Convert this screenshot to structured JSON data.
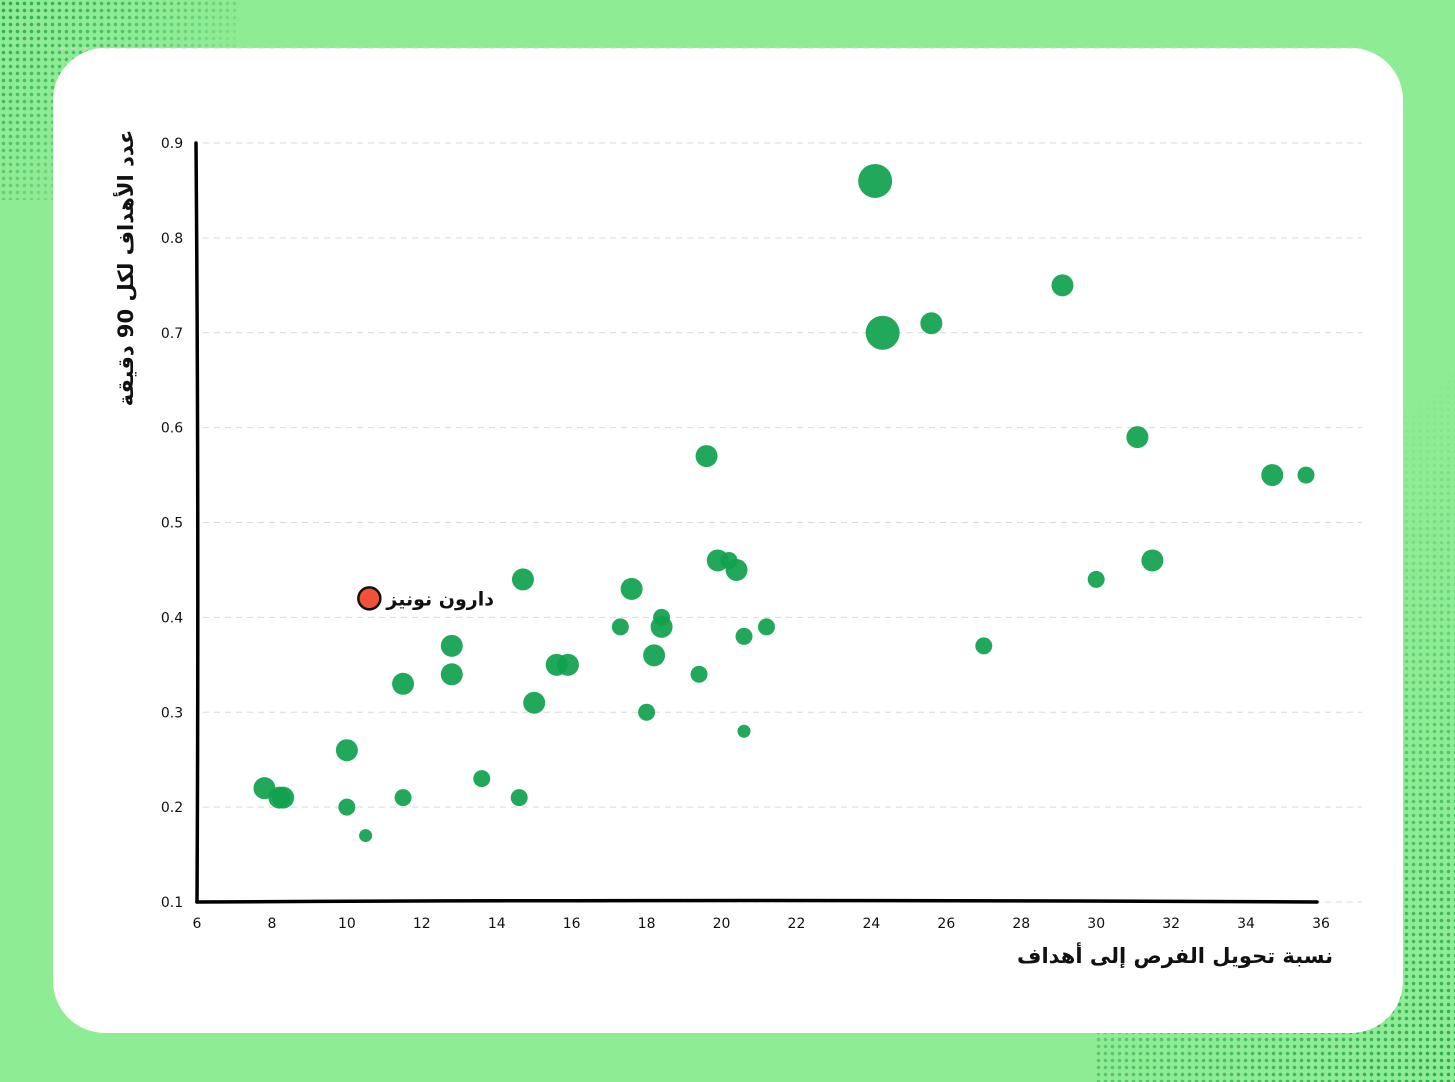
{
  "colors": {
    "background": "#8eec95",
    "card": "#ffffff",
    "point": "#11a14e",
    "highlight": "#f05138",
    "highlight_stroke": "#111111",
    "grid": "#d9d9d9",
    "axis": "#000000"
  },
  "chart_data": {
    "type": "scatter",
    "xlabel": "نسبة تحويل الفرص إلى أهداف",
    "ylabel": "عدد الأهداف لكل 90 دقيقة",
    "xlim": [
      6,
      36
    ],
    "ylim": [
      0.1,
      0.9
    ],
    "x_ticks": [
      "6",
      "8",
      "10",
      "12",
      "14",
      "16",
      "18",
      "20",
      "22",
      "24",
      "26",
      "28",
      "30",
      "32",
      "34",
      "36"
    ],
    "y_ticks": [
      "0.1",
      "0.2",
      "0.3",
      "0.4",
      "0.5",
      "0.6",
      "0.7",
      "0.8",
      "0.9"
    ],
    "grid": "horizontal dashed",
    "points": [
      {
        "x": 24.1,
        "y": 0.86,
        "size": "large"
      },
      {
        "x": 29.1,
        "y": 0.75,
        "size": "medium"
      },
      {
        "x": 24.3,
        "y": 0.7,
        "size": "large"
      },
      {
        "x": 25.6,
        "y": 0.71,
        "size": "medium"
      },
      {
        "x": 31.1,
        "y": 0.59,
        "size": "medium"
      },
      {
        "x": 19.6,
        "y": 0.57,
        "size": "medium"
      },
      {
        "x": 34.7,
        "y": 0.55,
        "size": "medium"
      },
      {
        "x": 35.6,
        "y": 0.55,
        "size": "small"
      },
      {
        "x": 31.5,
        "y": 0.46,
        "size": "medium"
      },
      {
        "x": 19.9,
        "y": 0.46,
        "size": "medium"
      },
      {
        "x": 20.2,
        "y": 0.46,
        "size": "small"
      },
      {
        "x": 20.4,
        "y": 0.45,
        "size": "medium"
      },
      {
        "x": 30.0,
        "y": 0.44,
        "size": "small"
      },
      {
        "x": 14.7,
        "y": 0.44,
        "size": "medium"
      },
      {
        "x": 17.6,
        "y": 0.43,
        "size": "medium"
      },
      {
        "x": 18.4,
        "y": 0.4,
        "size": "small"
      },
      {
        "x": 17.3,
        "y": 0.39,
        "size": "small"
      },
      {
        "x": 18.4,
        "y": 0.39,
        "size": "medium"
      },
      {
        "x": 21.2,
        "y": 0.39,
        "size": "small"
      },
      {
        "x": 20.6,
        "y": 0.38,
        "size": "small"
      },
      {
        "x": 12.8,
        "y": 0.37,
        "size": "medium"
      },
      {
        "x": 27.0,
        "y": 0.37,
        "size": "small"
      },
      {
        "x": 18.2,
        "y": 0.36,
        "size": "medium"
      },
      {
        "x": 15.6,
        "y": 0.35,
        "size": "medium"
      },
      {
        "x": 15.9,
        "y": 0.35,
        "size": "medium"
      },
      {
        "x": 12.8,
        "y": 0.34,
        "size": "medium"
      },
      {
        "x": 19.4,
        "y": 0.34,
        "size": "small"
      },
      {
        "x": 11.5,
        "y": 0.33,
        "size": "medium"
      },
      {
        "x": 15.0,
        "y": 0.31,
        "size": "medium"
      },
      {
        "x": 18.0,
        "y": 0.3,
        "size": "small"
      },
      {
        "x": 20.6,
        "y": 0.28,
        "size": "xsmall"
      },
      {
        "x": 10.0,
        "y": 0.26,
        "size": "medium"
      },
      {
        "x": 13.6,
        "y": 0.23,
        "size": "small"
      },
      {
        "x": 7.8,
        "y": 0.22,
        "size": "medium"
      },
      {
        "x": 8.2,
        "y": 0.21,
        "size": "medium"
      },
      {
        "x": 8.3,
        "y": 0.21,
        "size": "medium"
      },
      {
        "x": 11.5,
        "y": 0.21,
        "size": "small"
      },
      {
        "x": 14.6,
        "y": 0.21,
        "size": "small"
      },
      {
        "x": 10.0,
        "y": 0.2,
        "size": "small"
      },
      {
        "x": 10.5,
        "y": 0.17,
        "size": "xsmall"
      }
    ],
    "highlight": {
      "label": "دارون نونيز",
      "x": 10.6,
      "y": 0.42
    }
  }
}
